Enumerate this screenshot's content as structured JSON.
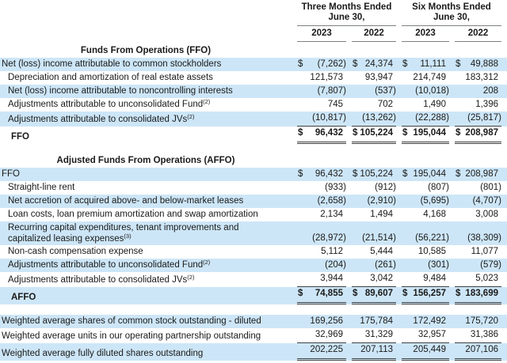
{
  "colors": {
    "row_shade": "#cde6f7",
    "rule_gray": "#7d8082",
    "rule_dark": "#404040",
    "text": "#1a1a1a"
  },
  "table": {
    "currency": "$",
    "header": {
      "groups": [
        "Three Months Ended\nJune 30,",
        "Six Months Ended\nJune 30,"
      ],
      "years": [
        "2023",
        "2022",
        "2023",
        "2022"
      ]
    },
    "rows": [
      {
        "type": "section",
        "label": "Funds From Operations (FFO)"
      },
      {
        "type": "row",
        "label": "Net (loss) income attributable to common stockholders",
        "indent": 0,
        "shade": true,
        "dollar": true,
        "values": [
          "(7,262)",
          "24,374",
          "11,111",
          "49,888"
        ]
      },
      {
        "type": "row",
        "label": "Depreciation and amortization of real estate assets",
        "indent": 1,
        "shade": false,
        "values": [
          "121,573",
          "93,947",
          "214,749",
          "183,312"
        ]
      },
      {
        "type": "row",
        "label": "Net (loss) income attributable to noncontrolling interests",
        "indent": 1,
        "shade": true,
        "values": [
          "(7,807)",
          "(537)",
          "(10,018)",
          "208"
        ]
      },
      {
        "type": "row",
        "label": "Adjustments attributable to unconsolidated Fund",
        "sup": "(2)",
        "indent": 1,
        "shade": false,
        "values": [
          "745",
          "702",
          "1,490",
          "1,396"
        ]
      },
      {
        "type": "row",
        "label": "Adjustments attributable to consolidated JVs",
        "sup": "(2)",
        "indent": 1,
        "shade": true,
        "rule": "single",
        "values": [
          "(10,817)",
          "(13,262)",
          "(22,288)",
          "(25,817)"
        ]
      },
      {
        "type": "row",
        "label": "FFO",
        "indent": 2,
        "bold": true,
        "shade": false,
        "dollar": true,
        "rule": "double",
        "values": [
          "96,432",
          "105,224",
          "195,044",
          "208,987"
        ]
      },
      {
        "type": "gap"
      },
      {
        "type": "section",
        "label": "Adjusted Funds From Operations (AFFO)"
      },
      {
        "type": "row",
        "label": "FFO",
        "indent": 0,
        "shade": true,
        "dollar": true,
        "values": [
          "96,432",
          "105,224",
          "195,044",
          "208,987"
        ]
      },
      {
        "type": "row",
        "label": "Straight-line rent",
        "indent": 1,
        "shade": false,
        "values": [
          "(933)",
          "(912)",
          "(807)",
          "(801)"
        ]
      },
      {
        "type": "row",
        "label": "Net accretion of acquired above- and below-market leases",
        "indent": 1,
        "shade": true,
        "values": [
          "(2,658)",
          "(2,910)",
          "(5,695)",
          "(4,707)"
        ]
      },
      {
        "type": "row",
        "label": "Loan costs, loan premium amortization and swap amortization",
        "indent": 1,
        "shade": false,
        "values": [
          "2,134",
          "1,494",
          "4,168",
          "3,008"
        ]
      },
      {
        "type": "row",
        "label": "Recurring capital expenditures, tenant improvements and\ncapitalized leasing expenses",
        "sup": "(3)",
        "indent": 1,
        "shade": true,
        "twoline": true,
        "values": [
          "(28,972)",
          "(21,514)",
          "(56,221)",
          "(38,309)"
        ]
      },
      {
        "type": "row",
        "label": "Non-cash compensation expense",
        "indent": 1,
        "shade": false,
        "values": [
          "5,112",
          "5,444",
          "10,585",
          "11,077"
        ]
      },
      {
        "type": "row",
        "label": "Adjustments attributable to unconsolidated Fund",
        "sup": "(2)",
        "indent": 1,
        "shade": true,
        "values": [
          "(204)",
          "(261)",
          "(301)",
          "(579)"
        ]
      },
      {
        "type": "row",
        "label": "Adjustments attributable to consolidated JVs",
        "sup": "(2)",
        "indent": 1,
        "shade": false,
        "rule": "single",
        "values": [
          "3,944",
          "3,042",
          "9,484",
          "5,023"
        ]
      },
      {
        "type": "row",
        "label": "AFFO",
        "indent": 2,
        "bold": true,
        "shade": true,
        "dollar": true,
        "rule": "double",
        "values": [
          "74,855",
          "89,607",
          "156,257",
          "183,699"
        ]
      },
      {
        "type": "gap"
      },
      {
        "type": "row",
        "label": "Weighted average shares of common stock outstanding - diluted",
        "indent": 0,
        "shade": true,
        "values": [
          "169,256",
          "175,784",
          "172,492",
          "175,720"
        ]
      },
      {
        "type": "row",
        "label": "Weighted average units in our operating partnership outstanding",
        "indent": 0,
        "shade": false,
        "rule": "single",
        "values": [
          "32,969",
          "31,329",
          "32,957",
          "31,386"
        ]
      },
      {
        "type": "row",
        "label": "Weighted average fully diluted shares outstanding",
        "indent": 0,
        "shade": true,
        "rule": "double",
        "values": [
          "202,225",
          "207,113",
          "205,449",
          "207,106"
        ]
      }
    ]
  }
}
